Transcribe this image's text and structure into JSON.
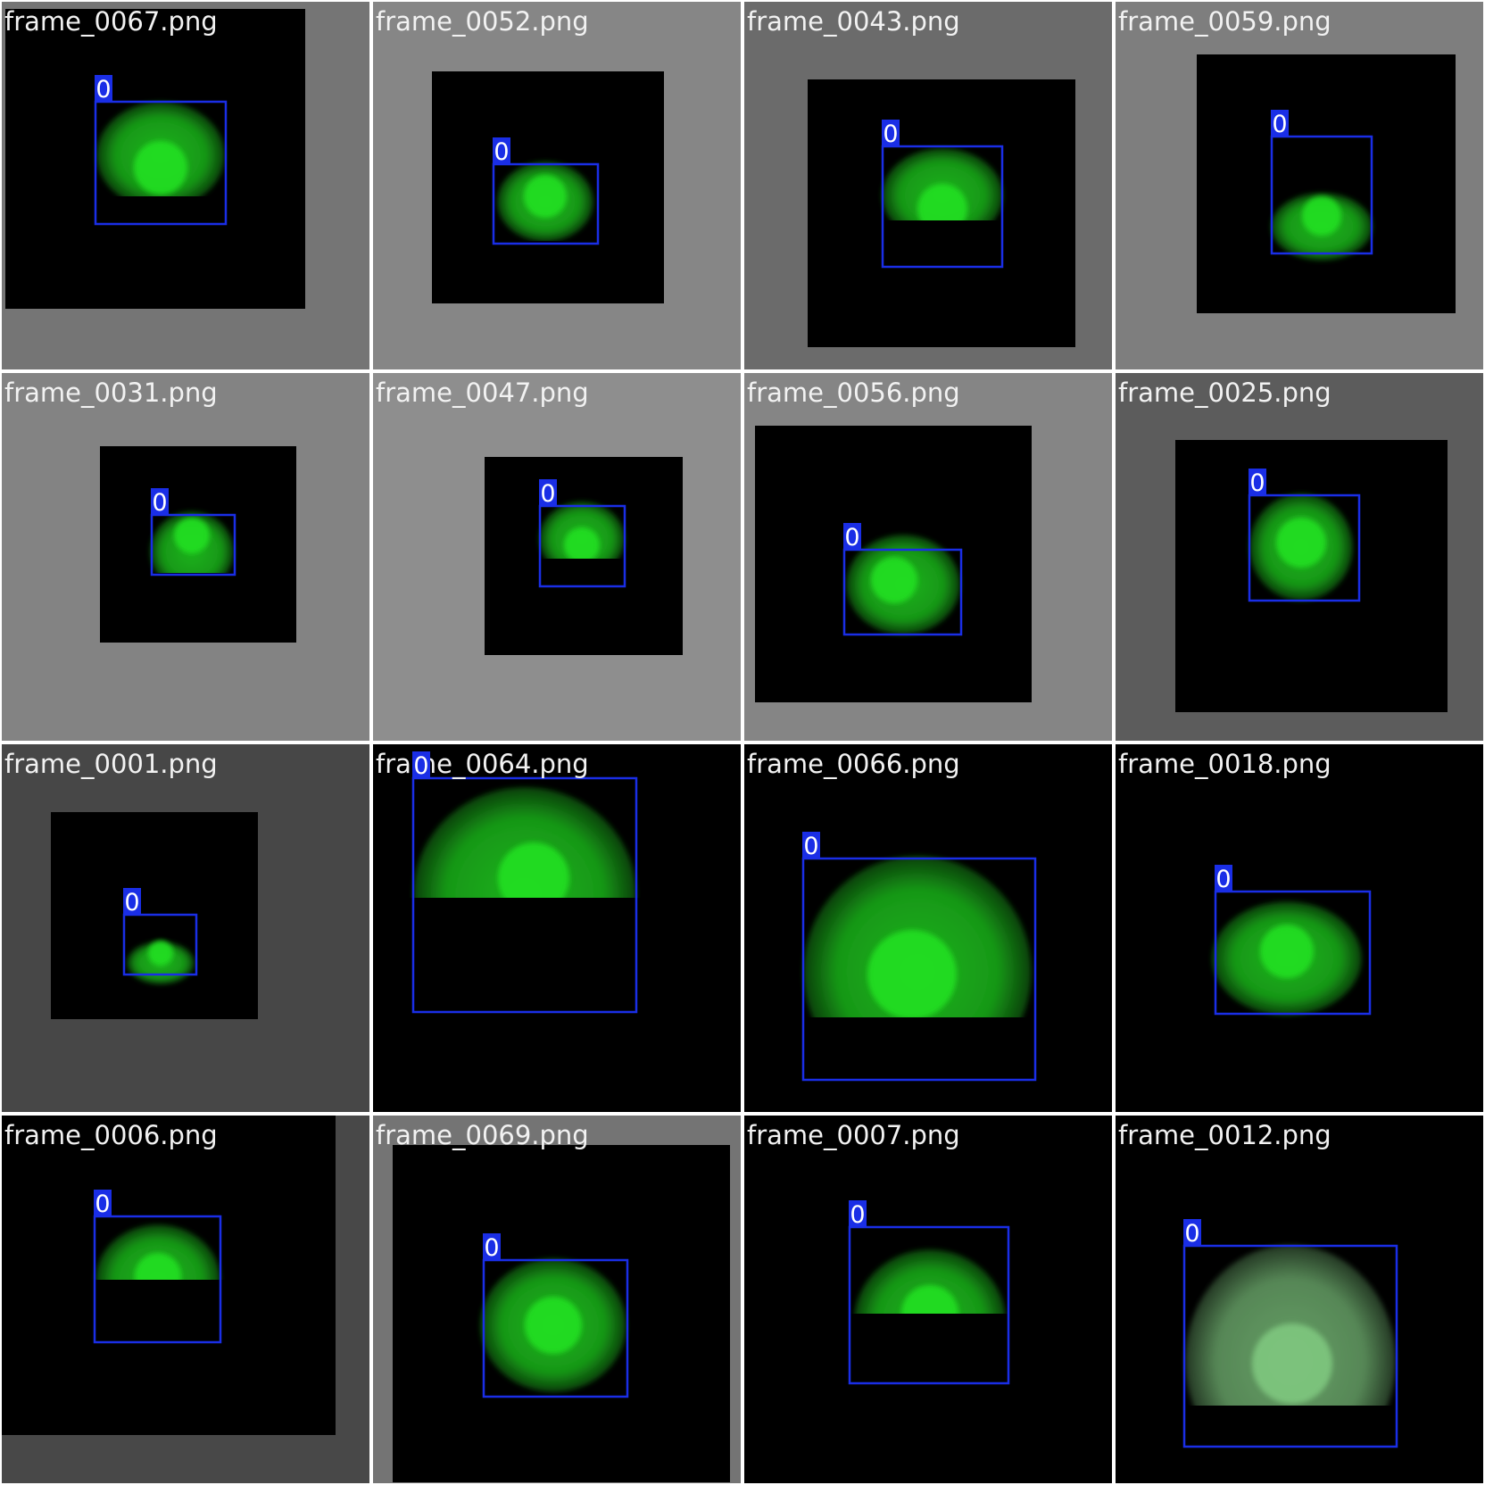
{
  "colors": {
    "box": "#1a2ee6",
    "label_bg": "#1a2ee6",
    "label_text": "#ffffff",
    "filename_text": "#f2f2f2",
    "glow": "#22e022",
    "divider": "#ffffff"
  },
  "tiles": [
    {
      "filename": "frame_0067.png",
      "class_label": "0",
      "bg": "#757575",
      "glow": "#22e022"
    },
    {
      "filename": "frame_0052.png",
      "class_label": "0",
      "bg": "#868686",
      "glow": "#22e022"
    },
    {
      "filename": "frame_0043.png",
      "class_label": "0",
      "bg": "#6b6b6b",
      "glow": "#22e022"
    },
    {
      "filename": "frame_0059.png",
      "class_label": "0",
      "bg": "#7e7e7e",
      "glow": "#22e022"
    },
    {
      "filename": "frame_0031.png",
      "class_label": "0",
      "bg": "#838383",
      "glow": "#22e022"
    },
    {
      "filename": "frame_0047.png",
      "class_label": "0",
      "bg": "#8e8e8e",
      "glow": "#22e022"
    },
    {
      "filename": "frame_0056.png",
      "class_label": "0",
      "bg": "#858585",
      "glow": "#22e022"
    },
    {
      "filename": "frame_0025.png",
      "class_label": "0",
      "bg": "#5c5c5c",
      "glow": "#22e022"
    },
    {
      "filename": "frame_0001.png",
      "class_label": "0",
      "bg": "#474747",
      "glow": "#22e022"
    },
    {
      "filename": "frame_0064.png",
      "class_label": "0",
      "bg": "#000000",
      "glow": "#22e022"
    },
    {
      "filename": "frame_0066.png",
      "class_label": "0",
      "bg": "#000000",
      "glow": "#22e022"
    },
    {
      "filename": "frame_0018.png",
      "class_label": "0",
      "bg": "#000000",
      "glow": "#22e022"
    },
    {
      "filename": "frame_0006.png",
      "class_label": "0",
      "bg": "#484848",
      "glow": "#22e022"
    },
    {
      "filename": "frame_0069.png",
      "class_label": "0",
      "bg": "#747474",
      "glow": "#22e022"
    },
    {
      "filename": "frame_0007.png",
      "class_label": "0",
      "bg": "#000000",
      "glow": "#22e022"
    },
    {
      "filename": "frame_0012.png",
      "class_label": "0",
      "bg": "#000000",
      "glow": "#7fc77f"
    }
  ]
}
